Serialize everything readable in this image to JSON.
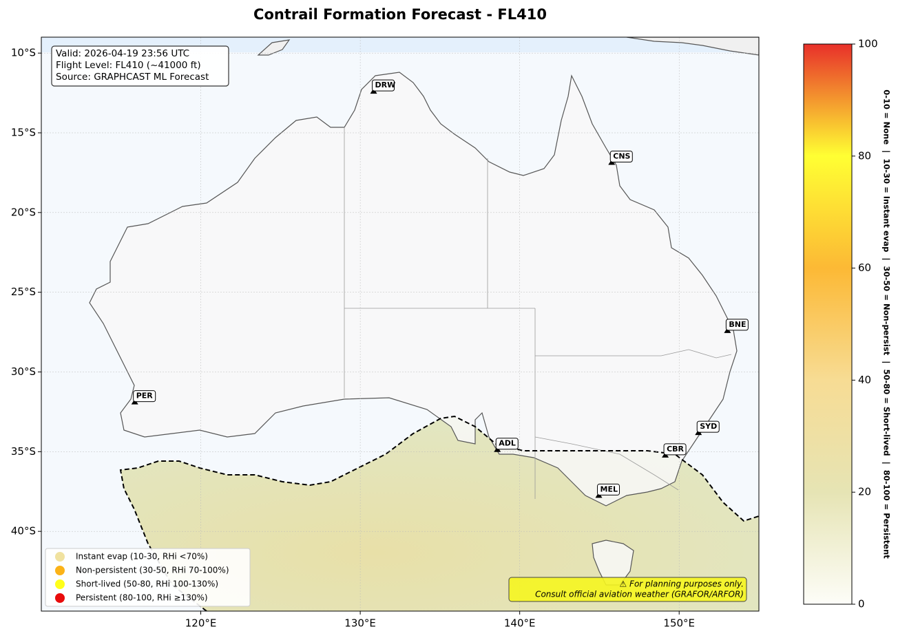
{
  "title": "Contrail Formation Forecast - FL410",
  "info": [
    "Valid: 2026-04-19 23:56 UTC",
    "Flight Level: FL410 (~41000 ft)",
    "Source: GRAPHCAST ML Forecast"
  ],
  "map": {
    "xlim": [
      110,
      155
    ],
    "ylim": [
      -45,
      -9
    ],
    "xticks": [
      {
        "value": 120,
        "label": "120°E"
      },
      {
        "value": 130,
        "label": "130°E"
      },
      {
        "value": 140,
        "label": "140°E"
      },
      {
        "value": 150,
        "label": "150°E"
      }
    ],
    "yticks": [
      {
        "value": -10,
        "label": "10°S"
      },
      {
        "value": -15,
        "label": "15°S"
      },
      {
        "value": -20,
        "label": "20°S"
      },
      {
        "value": -25,
        "label": "25°S"
      },
      {
        "value": -30,
        "label": "30°S"
      },
      {
        "value": -35,
        "label": "35°S"
      },
      {
        "value": -40,
        "label": "40°S"
      }
    ],
    "grid": true
  },
  "airports": [
    {
      "code": "PER",
      "lon": 115.86,
      "lat": -31.95
    },
    {
      "code": "DRW",
      "lon": 130.84,
      "lat": -12.46
    },
    {
      "code": "CNS",
      "lon": 145.77,
      "lat": -16.92
    },
    {
      "code": "BNE",
      "lon": 153.03,
      "lat": -27.47
    },
    {
      "code": "SYD",
      "lon": 151.21,
      "lat": -33.87
    },
    {
      "code": "CBR",
      "lon": 149.13,
      "lat": -35.28
    },
    {
      "code": "MEL",
      "lon": 144.96,
      "lat": -37.81
    },
    {
      "code": "ADL",
      "lon": 138.6,
      "lat": -34.93
    }
  ],
  "legend": [
    {
      "label": "Instant evap (10-30, RHi <70%)",
      "color": "#f0e2a0"
    },
    {
      "label": "Non-persistent (30-50, RHi 70-100%)",
      "color": "#fbb318"
    },
    {
      "label": "Short-lived (50-80, RHi 100-130%)",
      "color": "#ffff1a"
    },
    {
      "label": "Persistent (80-100, RHi ≥130%)",
      "color": "#e80c0c"
    }
  ],
  "disclaimer": [
    "⚠ For planning purposes only.",
    "Consult official aviation weather (GRAFOR/ARFOR)"
  ],
  "colorbar": {
    "ylim": [
      0,
      100
    ],
    "yticks": [
      0,
      20,
      40,
      60,
      80,
      100
    ],
    "label": "0-10 = None  |  10-30 = Instant evap  |  30-50 = Non-persist  |  50-80 = Short-lived  |  80-100 = Persistent"
  }
}
